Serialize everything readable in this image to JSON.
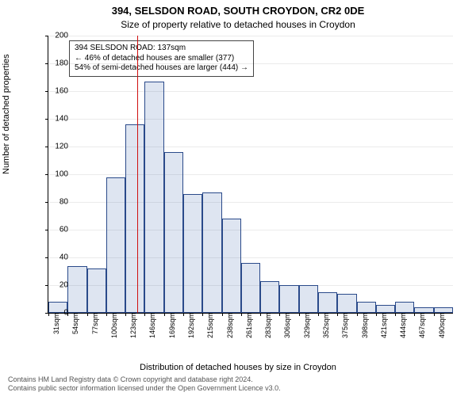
{
  "title_main": "394, SELSDON ROAD, SOUTH CROYDON, CR2 0DE",
  "title_sub": "Size of property relative to detached houses in Croydon",
  "ylabel": "Number of detached properties",
  "xlabel": "Distribution of detached houses by size in Croydon",
  "annotation": {
    "line1": "394 SELSDON ROAD: 137sqm",
    "line2": "← 46% of detached houses are smaller (377)",
    "line3": "54% of semi-detached houses are larger (444) →"
  },
  "footer": {
    "line1": "Contains HM Land Registry data © Crown copyright and database right 2024.",
    "line2": "Contains public sector information licensed under the Open Government Licence v3.0."
  },
  "chart": {
    "type": "histogram",
    "bar_fill": "rgba(70,110,180,0.18)",
    "bar_stroke": "#2a4a8a",
    "marker_color": "#d01010",
    "background_color": "#ffffff",
    "grid_color": "#000000",
    "ylim": [
      0,
      200
    ],
    "ytick_step": 20,
    "x_start": 31,
    "x_step": 23,
    "x_unit": "sqm",
    "marker_x": 137,
    "bars": [
      8,
      34,
      32,
      98,
      136,
      167,
      116,
      86,
      87,
      68,
      36,
      23,
      20,
      20,
      15,
      14,
      8,
      6,
      8,
      4,
      4
    ],
    "xticks": [
      "31sqm",
      "54sqm",
      "77sqm",
      "100sqm",
      "123sqm",
      "146sqm",
      "169sqm",
      "192sqm",
      "215sqm",
      "238sqm",
      "261sqm",
      "283sqm",
      "306sqm",
      "329sqm",
      "352sqm",
      "375sqm",
      "398sqm",
      "421sqm",
      "444sqm",
      "467sqm",
      "490sqm"
    ],
    "font_family": "Arial",
    "title_fontsize": 13,
    "subtitle_fontsize": 12,
    "axis_label_fontsize": 11,
    "tick_fontsize": 10,
    "xtick_fontsize": 9,
    "annotation_fontsize": 10
  }
}
